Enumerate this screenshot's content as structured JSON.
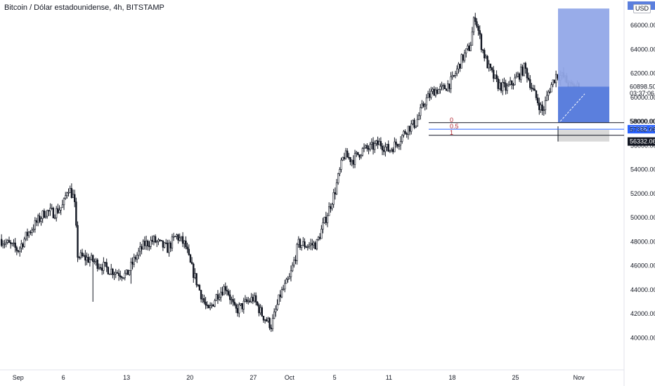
{
  "chart": {
    "title": "Bitcoin / Dólar estadounidense, 4h, BITSTAMP",
    "currency": "USD",
    "colors": {
      "up": "#ffffff",
      "down": "#131722",
      "wick": "#131722",
      "grid": "#f0f3fa"
    }
  },
  "position": {
    "entry": 60898.5,
    "target": 67400,
    "stop": 56332.06,
    "countdown": "03:37:06",
    "colors": {
      "profit": "#92a8e8",
      "profit_filled": "#5b7fdd",
      "loss": "#d9d9d9",
      "loss_filled": "#b8b8b8"
    }
  },
  "fibonacci": {
    "levels": [
      {
        "label": "0",
        "price": 57900
      },
      {
        "label": "0.5",
        "price": 57355.26
      },
      {
        "label": "1",
        "price": 56850
      }
    ]
  },
  "price_tags": [
    {
      "text": "60898.50",
      "price": 60898.5,
      "style": "plain"
    },
    {
      "text": "03:37:06",
      "price": 60350,
      "style": "plain"
    },
    {
      "text": "58000.00",
      "price": 58000,
      "style": "plain"
    },
    {
      "text": "57355.26",
      "price": 57355.26,
      "style": "blue"
    },
    {
      "text": "57332.06",
      "price": 57332.06,
      "style": "plain"
    },
    {
      "text": "56332.06",
      "price": 56332.06,
      "style": "dark"
    }
  ],
  "chart_data": {
    "type": "candlestick",
    "ylim": [
      38500,
      67700
    ],
    "yticks": [
      40000,
      42000,
      44000,
      46000,
      48000,
      50000,
      52000,
      54000,
      56000,
      58000,
      60000,
      62000,
      64000,
      66000
    ],
    "ytick_labels": [
      "40000.00",
      "42000.00",
      "44000.00",
      "46000.00",
      "48000.00",
      "50000.00",
      "52000.00",
      "54000.00",
      "56000.00",
      "58000.00",
      "60000.00",
      "62000.00",
      "64000.00",
      "66000.00"
    ],
    "xtick_labels": [
      "Sep",
      "6",
      "13",
      "20",
      "27",
      "Oct",
      "5",
      "11",
      "18",
      "25",
      "Nov"
    ],
    "xlim_day": [
      0,
      69
    ],
    "xtick_days": [
      2,
      7,
      14,
      21,
      28,
      32,
      37,
      43,
      50,
      57,
      64
    ],
    "grid": false,
    "anchors": [
      [
        0,
        48200
      ],
      [
        2,
        47300
      ],
      [
        3,
        48600
      ],
      [
        5,
        50500
      ],
      [
        6,
        50400
      ],
      [
        7,
        51000
      ],
      [
        7.5,
        52600
      ],
      [
        8.2,
        51600
      ],
      [
        8.6,
        46800
      ],
      [
        10,
        46500
      ],
      [
        12,
        45700
      ],
      [
        14,
        45200
      ],
      [
        15,
        46700
      ],
      [
        16,
        47800
      ],
      [
        17,
        48100
      ],
      [
        18.5,
        47400
      ],
      [
        19.5,
        48500
      ],
      [
        20.5,
        47700
      ],
      [
        21,
        46200
      ],
      [
        22,
        44100
      ],
      [
        23,
        42100
      ],
      [
        24,
        43600
      ],
      [
        25,
        44300
      ],
      [
        26,
        42200
      ],
      [
        27,
        42800
      ],
      [
        28,
        43300
      ],
      [
        29,
        41900
      ],
      [
        30,
        41000
      ],
      [
        31,
        43600
      ],
      [
        32,
        44900
      ],
      [
        33,
        47800
      ],
      [
        34,
        47700
      ],
      [
        35,
        47800
      ],
      [
        36,
        49900
      ],
      [
        37,
        52100
      ],
      [
        38,
        55200
      ],
      [
        39,
        54800
      ],
      [
        40,
        55600
      ],
      [
        41,
        55800
      ],
      [
        42,
        56200
      ],
      [
        43,
        55600
      ],
      [
        44,
        56300
      ],
      [
        45,
        57400
      ],
      [
        46,
        57900
      ],
      [
        47,
        59700
      ],
      [
        48,
        60600
      ],
      [
        49,
        60700
      ],
      [
        50,
        61400
      ],
      [
        51,
        63100
      ],
      [
        52,
        64300
      ],
      [
        52.5,
        66900
      ],
      [
        53.3,
        64100
      ],
      [
        54,
        62500
      ],
      [
        55,
        61100
      ],
      [
        56,
        60700
      ],
      [
        57,
        61500
      ],
      [
        58,
        62500
      ],
      [
        59,
        60400
      ],
      [
        60,
        58800
      ],
      [
        60.7,
        60600
      ],
      [
        61.5,
        61900
      ],
      [
        62.3,
        61700
      ],
      [
        63,
        60900
      ],
      [
        64,
        60898.5
      ]
    ],
    "candle_count": 380
  }
}
